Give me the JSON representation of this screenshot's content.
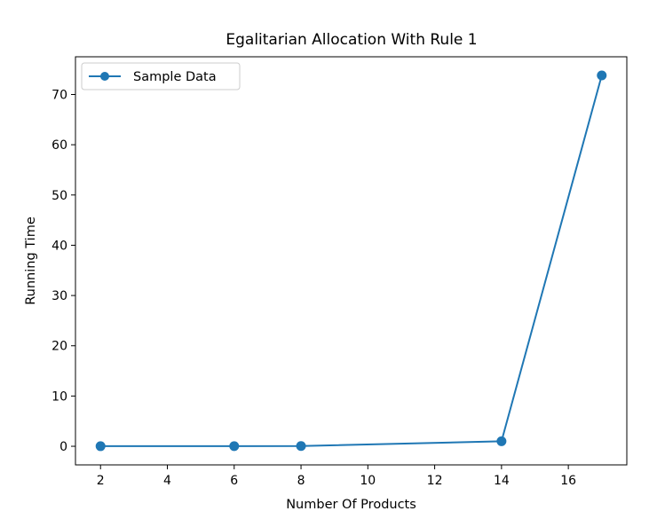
{
  "chart_data": {
    "type": "line",
    "title": "Egalitarian Allocation With Rule 1",
    "xlabel": "Number Of Products",
    "ylabel": "Running Time",
    "xlim": [
      1.25,
      17.75
    ],
    "ylim": [
      -3.7,
      77.5
    ],
    "xticks": [
      2,
      4,
      6,
      8,
      10,
      12,
      14,
      16
    ],
    "yticks": [
      0,
      10,
      20,
      30,
      40,
      50,
      60,
      70
    ],
    "grid": false,
    "legend_position": "top-left",
    "series": [
      {
        "name": "Sample Data",
        "color": "#1f77b4",
        "marker": "circle",
        "x": [
          2,
          6,
          8,
          14,
          17
        ],
        "y": [
          0.02,
          0.03,
          0.05,
          1.0,
          73.8
        ]
      }
    ]
  }
}
